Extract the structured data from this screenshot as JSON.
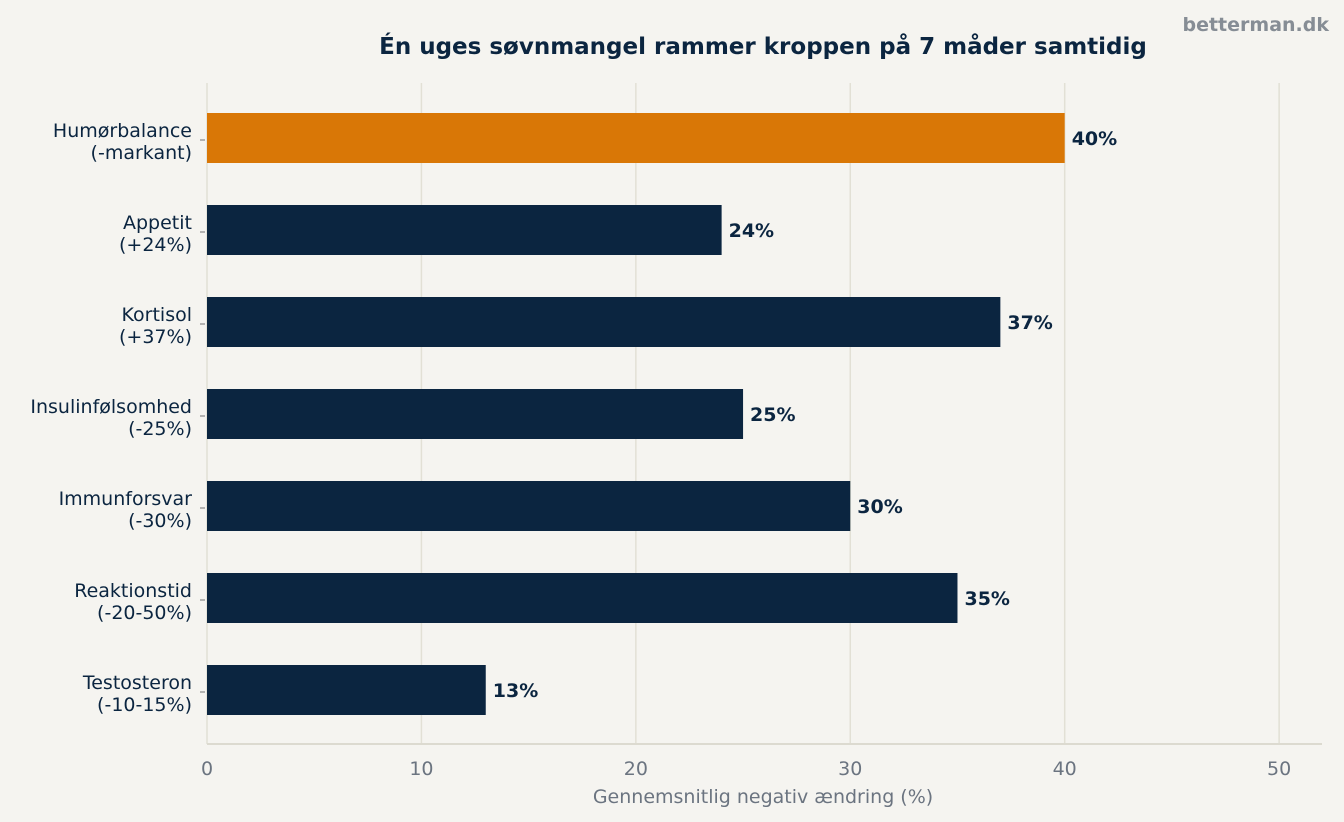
{
  "brand": "betterman.dk",
  "chart_data": {
    "type": "bar",
    "orientation": "horizontal",
    "title": "Én uges søvnmangel rammer kroppen på 7 måder samtidig",
    "xlabel": "Gennemsnitlig negativ ændring (%)",
    "ylabel": "",
    "xlim": [
      0,
      52
    ],
    "xticks": [
      0,
      10,
      20,
      30,
      40,
      50
    ],
    "grid": "vertical",
    "categories": [
      [
        "Humørbalance",
        "(-markant)"
      ],
      [
        "Appetit",
        "(+24%)"
      ],
      [
        "Kortisol",
        "(+37%)"
      ],
      [
        "Insulinfølsomhed",
        "(-25%)"
      ],
      [
        "Immunforsvar",
        "(-30%)"
      ],
      [
        "Reaktionstid",
        "(-20-50%)"
      ],
      [
        "Testosteron",
        "(-10-15%)"
      ]
    ],
    "values": [
      40,
      24,
      37,
      25,
      30,
      35,
      13
    ],
    "value_labels": [
      "40%",
      "24%",
      "37%",
      "25%",
      "30%",
      "35%",
      "13%"
    ],
    "highlight_index": 0,
    "colors": {
      "bar": "#0b2540",
      "highlight": "#d97706"
    }
  }
}
